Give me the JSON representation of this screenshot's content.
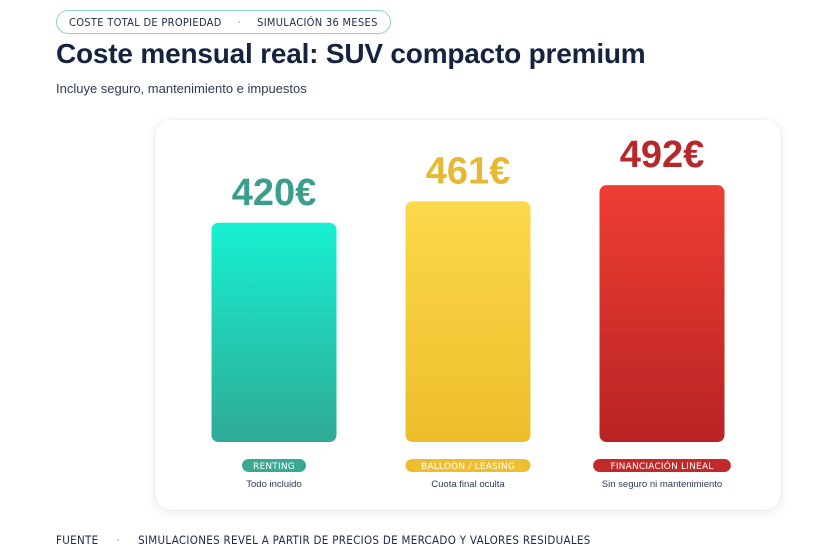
{
  "header": {
    "tag_left": "COSTE TOTAL DE PROPIEDAD",
    "tag_right": "SIMULACIÓN 36 MESES",
    "separator": "·",
    "title": "Coste mensual real: SUV compacto premium",
    "subtitle": "Incluye seguro, mantenimiento e impuestos"
  },
  "chart_data": {
    "type": "bar",
    "categories": [
      "RENTING",
      "BALLOON / LEASING",
      "FINANCIACIÓN LINEAL"
    ],
    "values": [
      420,
      461,
      492
    ],
    "value_labels": [
      "420€",
      "461€",
      "492€"
    ],
    "notes": [
      "Todo incluido",
      "Cuota final oculta",
      "Sin seguro ni mantenimiento"
    ],
    "colors": [
      {
        "top": "#16f0d2",
        "bottom": "#2faa95",
        "label": "#3a9e8c",
        "pill": "#3aa893"
      },
      {
        "top": "#fbd94a",
        "bottom": "#eebd2a",
        "label": "#e6b833",
        "pill": "#eebe2e"
      },
      {
        "top": "#ee3e33",
        "bottom": "#b82323",
        "label": "#b8282a",
        "pill": "#c2292a"
      }
    ],
    "ylim": [
      0,
      560
    ],
    "grid": false,
    "legend": "none"
  },
  "footer": {
    "label": "FUENTE",
    "separator": "·",
    "text": "SIMULACIONES REVEL A PARTIR DE PRECIOS DE MERCADO Y VALORES RESIDUALES"
  }
}
